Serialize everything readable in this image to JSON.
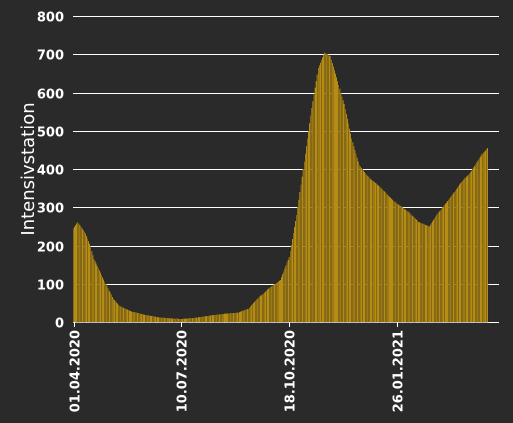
{
  "chart_data": {
    "type": "bar",
    "title": "",
    "xlabel": "",
    "ylabel": "Intensivstation",
    "ylim": [
      0,
      800
    ],
    "yticks": [
      0,
      100,
      200,
      300,
      400,
      500,
      600,
      700,
      800
    ],
    "grid": true,
    "legend": "none",
    "bar_color": "#e8b10e",
    "bar_edge_color": "#1f1f1f",
    "background_color": "#2b2a2a",
    "text_color": "#ffffff",
    "x_start": "01.04.2020",
    "x_end": "30.04.2021",
    "xtick_labels": [
      "01.04.2020",
      "10.07.2020",
      "18.10.2020",
      "26.01.2021"
    ],
    "series": [
      {
        "keyframes": [
          [
            "01.04.2020",
            245
          ],
          [
            "05.04.2020",
            262
          ],
          [
            "08.04.2020",
            250
          ],
          [
            "12.04.2020",
            232
          ],
          [
            "16.04.2020",
            205
          ],
          [
            "20.04.2020",
            165
          ],
          [
            "25.04.2020",
            135
          ],
          [
            "01.05.2020",
            100
          ],
          [
            "08.05.2020",
            60
          ],
          [
            "15.05.2020",
            40
          ],
          [
            "25.05.2020",
            28
          ],
          [
            "05.06.2020",
            20
          ],
          [
            "20.06.2020",
            12
          ],
          [
            "10.07.2020",
            8
          ],
          [
            "25.07.2020",
            12
          ],
          [
            "05.08.2020",
            17
          ],
          [
            "20.08.2020",
            22
          ],
          [
            "01.09.2020",
            25
          ],
          [
            "10.09.2020",
            35
          ],
          [
            "20.09.2020",
            65
          ],
          [
            "30.09.2020",
            90
          ],
          [
            "10.10.2020",
            110
          ],
          [
            "18.10.2020",
            170
          ],
          [
            "25.10.2020",
            280
          ],
          [
            "01.11.2020",
            420
          ],
          [
            "08.11.2020",
            560
          ],
          [
            "14.11.2020",
            665
          ],
          [
            "20.11.2020",
            705
          ],
          [
            "25.11.2020",
            695
          ],
          [
            "01.12.2020",
            640
          ],
          [
            "08.12.2020",
            570
          ],
          [
            "15.12.2020",
            480
          ],
          [
            "22.12.2020",
            410
          ],
          [
            "01.01.2021",
            375
          ],
          [
            "10.01.2021",
            355
          ],
          [
            "18.01.2021",
            330
          ],
          [
            "26.01.2021",
            310
          ],
          [
            "05.02.2021",
            290
          ],
          [
            "15.02.2021",
            262
          ],
          [
            "25.02.2021",
            250
          ],
          [
            "05.03.2021",
            285
          ],
          [
            "15.03.2021",
            320
          ],
          [
            "25.03.2021",
            360
          ],
          [
            "05.04.2021",
            395
          ],
          [
            "15.04.2021",
            440
          ],
          [
            "20.04.2021",
            455
          ]
        ]
      }
    ]
  }
}
